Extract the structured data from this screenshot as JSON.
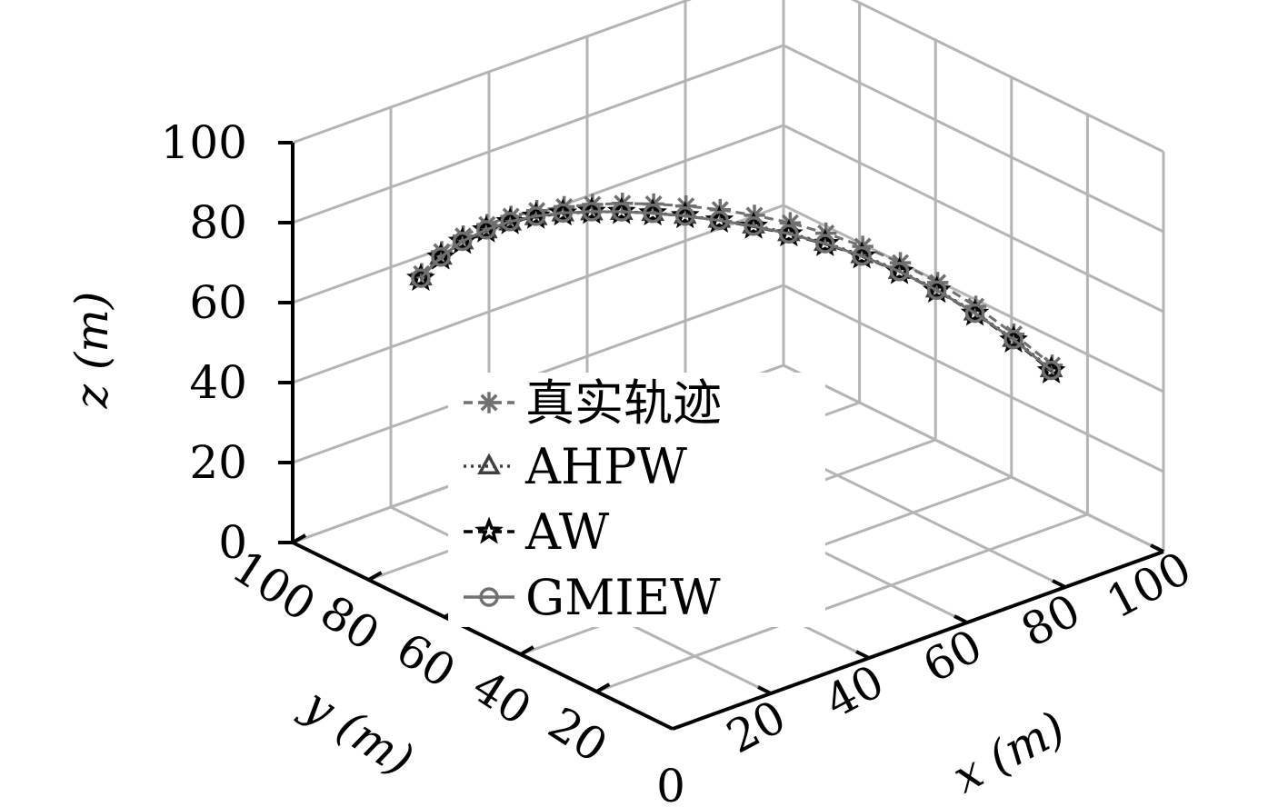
{
  "chart_data": {
    "type": "scatter3d",
    "xlabel": "x (m)",
    "ylabel": "y (m)",
    "zlabel": "z (m)",
    "xlim": [
      0,
      100
    ],
    "ylim": [
      0,
      100
    ],
    "zlim": [
      0,
      100
    ],
    "x_ticks": [
      "20",
      "40",
      "60",
      "80",
      "100"
    ],
    "y_ticks": [
      "100",
      "80",
      "60",
      "40",
      "20"
    ],
    "z_ticks": [
      "100",
      "80",
      "60",
      "40",
      "20",
      "0"
    ],
    "origin_label": "0",
    "grid": true,
    "legend_position": "center",
    "series": [
      {
        "name": "真实轨迹",
        "marker": "asterisk",
        "line": "dashed",
        "color": "#707070",
        "x": [
          20.7,
          22.0,
          23.6,
          25.5,
          27.6,
          30.0,
          32.7,
          35.7,
          39.0,
          42.5,
          46.3,
          50.4,
          54.6,
          59.1,
          63.6,
          68.3,
          73.1,
          78.0,
          82.9,
          87.8,
          92.8
        ],
        "y": [
          92.8,
          89.2,
          85.6,
          81.8,
          78.2,
          74.5,
          70.8,
          67.2,
          63.6,
          59.9,
          56.3,
          52.6,
          49.0,
          45.4,
          41.8,
          38.2,
          34.5,
          31.0,
          27.3,
          23.6,
          20.0
        ],
        "z": [
          61.4,
          68.0,
          72.9,
          76.7,
          79.5,
          81.6,
          83.1,
          84.0,
          84.5,
          84.5,
          84.0,
          83.0,
          81.4,
          79.2,
          76.3,
          72.6,
          68.1,
          62.6,
          56.2,
          48.8,
          40.5
        ]
      },
      {
        "name": "AHPW",
        "marker": "triangle",
        "line": "dotted",
        "color": "#404040",
        "x": [
          20.6,
          21.9,
          23.5,
          25.4,
          27.5,
          29.9,
          32.6,
          35.6,
          38.9,
          42.4,
          46.2,
          50.3,
          54.5,
          58.9,
          63.5,
          68.2,
          73.0,
          77.9,
          82.8,
          87.8,
          92.7
        ],
        "y": [
          92.9,
          89.3,
          85.7,
          81.9,
          78.3,
          74.6,
          71.0,
          67.3,
          63.7,
          60.0,
          56.4,
          52.7,
          49.1,
          45.5,
          41.9,
          38.3,
          34.6,
          31.1,
          27.4,
          23.7,
          20.1
        ],
        "z": [
          60.5,
          66.8,
          71.6,
          75.3,
          78.0,
          80.0,
          81.4,
          82.1,
          82.4,
          82.3,
          81.6,
          80.5,
          78.9,
          76.7,
          73.9,
          70.4,
          66.1,
          60.9,
          54.7,
          47.6,
          39.5
        ]
      },
      {
        "name": "AW",
        "marker": "star",
        "line": "dashed",
        "color": "#000000",
        "x": [
          20.6,
          21.9,
          23.5,
          25.4,
          27.5,
          29.9,
          32.6,
          35.6,
          38.9,
          42.4,
          46.2,
          50.3,
          54.5,
          58.9,
          63.5,
          68.2,
          73.0,
          77.9,
          82.8,
          87.8,
          92.7
        ],
        "y": [
          92.9,
          89.3,
          85.7,
          81.9,
          78.3,
          74.6,
          71.0,
          67.3,
          63.7,
          60.0,
          56.4,
          52.7,
          49.1,
          45.5,
          41.9,
          38.3,
          34.6,
          31.1,
          27.4,
          23.7,
          20.1
        ],
        "z": [
          60.2,
          66.6,
          71.5,
          75.3,
          78.1,
          80.1,
          81.4,
          82.2,
          82.4,
          82.2,
          81.5,
          80.3,
          78.6,
          76.4,
          73.6,
          70.1,
          65.8,
          60.6,
          54.4,
          47.2,
          39.0
        ]
      },
      {
        "name": "GMIEW",
        "marker": "circle",
        "line": "solid",
        "color": "#707070",
        "x": [
          20.6,
          21.9,
          23.5,
          25.4,
          27.5,
          29.9,
          32.6,
          35.6,
          38.9,
          42.4,
          46.2,
          50.3,
          54.5,
          58.9,
          63.5,
          68.2,
          73.0,
          77.9,
          82.8,
          87.8,
          92.7
        ],
        "y": [
          92.9,
          89.3,
          85.7,
          81.9,
          78.3,
          74.6,
          71.0,
          67.3,
          63.7,
          60.0,
          56.4,
          52.7,
          49.1,
          45.5,
          41.9,
          38.3,
          34.6,
          31.1,
          27.4,
          23.7,
          20.1
        ],
        "z": [
          60.3,
          66.7,
          71.6,
          75.4,
          78.2,
          80.2,
          81.5,
          82.2,
          82.4,
          82.2,
          81.5,
          80.3,
          78.7,
          76.5,
          73.7,
          70.2,
          65.9,
          60.7,
          54.5,
          47.4,
          39.2
        ]
      }
    ]
  }
}
